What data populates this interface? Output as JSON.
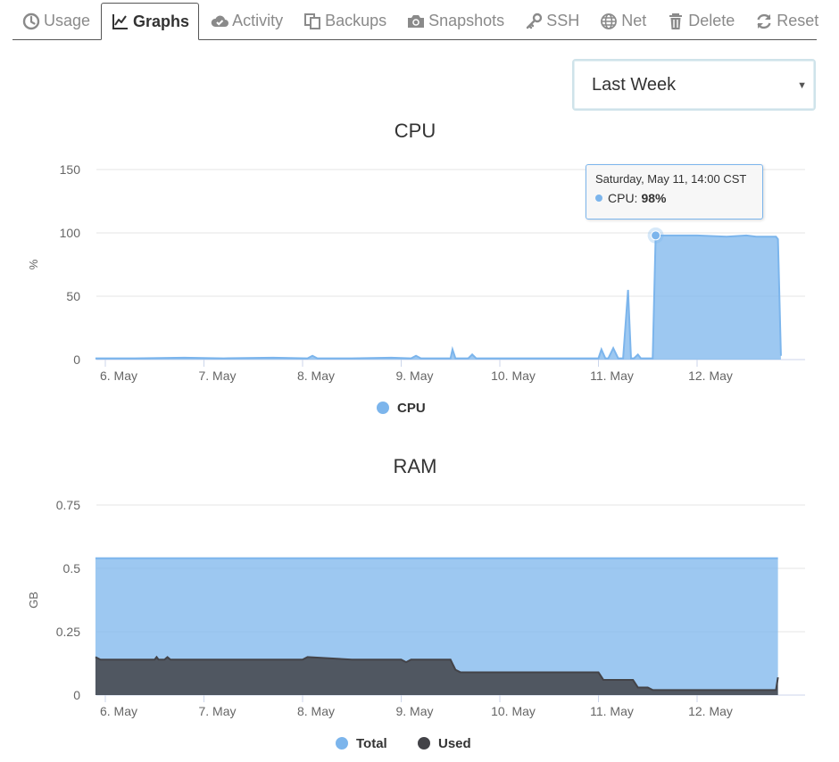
{
  "tabs": [
    {
      "label": "Usage",
      "icon": "clock-icon",
      "active": false
    },
    {
      "label": "Graphs",
      "icon": "line-chart-icon",
      "active": true
    },
    {
      "label": "Activity",
      "icon": "cloud-check-icon",
      "active": false
    },
    {
      "label": "Backups",
      "icon": "copy-icon",
      "active": false
    },
    {
      "label": "Snapshots",
      "icon": "camera-icon",
      "active": false
    },
    {
      "label": "SSH",
      "icon": "key-icon",
      "active": false
    },
    {
      "label": "Net",
      "icon": "globe-icon",
      "active": false
    },
    {
      "label": "Delete",
      "icon": "trash-icon",
      "active": false
    },
    {
      "label": "Reset",
      "icon": "refresh-icon",
      "active": false
    }
  ],
  "range_select": {
    "value": "Last Week"
  },
  "tooltip": {
    "date": "Saturday, May 11, 14:00 CST",
    "series": "CPU:",
    "value": "98%"
  },
  "colors": {
    "cpu": "#7cb5ec",
    "total": "#7cb5ec",
    "used": "#434348"
  },
  "chart_data": [
    {
      "type": "area",
      "title": "CPU",
      "ylabel": "%",
      "xlabel": "",
      "ylim": [
        0,
        150
      ],
      "yticks": [
        "0",
        "50",
        "100",
        "150"
      ],
      "yticks_values": [
        0,
        50,
        100,
        150
      ],
      "xticks": [
        "6. May",
        "7. May",
        "8. May",
        "9. May",
        "10. May",
        "11. May",
        "12. May"
      ],
      "xlim": [
        -0.1,
        6.85
      ],
      "legend": "bottom",
      "grid": true,
      "series": [
        {
          "name": "CPU",
          "color": "#7cb5ec",
          "x": [
            -0.1,
            0.3,
            0.8,
            1.2,
            1.7,
            2.05,
            2.1,
            2.15,
            2.5,
            2.9,
            3.1,
            3.15,
            3.2,
            3.5,
            3.52,
            3.55,
            3.6,
            3.68,
            3.72,
            3.76,
            4.0,
            4.5,
            4.9,
            4.95,
            5.0,
            5.03,
            5.07,
            5.1,
            5.15,
            5.2,
            5.25,
            5.3,
            5.33,
            5.36,
            5.4,
            5.43,
            5.46,
            5.5,
            5.55,
            5.58,
            5.65,
            5.8,
            6.0,
            6.3,
            6.5,
            6.6,
            6.8,
            6.82,
            6.85
          ],
          "values": [
            1,
            1,
            1.5,
            1,
            1.5,
            1,
            3,
            1,
            1,
            1.5,
            1,
            3,
            1,
            1,
            8,
            1,
            1,
            1,
            4,
            1,
            1,
            1,
            1,
            1,
            1,
            8,
            1,
            1,
            9,
            1,
            1,
            55,
            1,
            1,
            4,
            1,
            1,
            1,
            1,
            98,
            98,
            98,
            98,
            97,
            98,
            97,
            97,
            95,
            3
          ]
        }
      ],
      "highlight": {
        "x": 5.58,
        "value": 98
      }
    },
    {
      "type": "area",
      "title": "RAM",
      "ylabel": "GB",
      "xlabel": "",
      "ylim": [
        0,
        0.75
      ],
      "yticks": [
        "0",
        "0.25",
        "0.5",
        "0.75"
      ],
      "yticks_values": [
        0,
        0.25,
        0.5,
        0.75
      ],
      "xticks": [
        "6. May",
        "7. May",
        "8. May",
        "9. May",
        "10. May",
        "11. May",
        "12. May"
      ],
      "xlim": [
        -0.1,
        6.85
      ],
      "legend": "bottom",
      "grid": true,
      "series": [
        {
          "name": "Total",
          "color": "#7cb5ec",
          "x": [
            -0.1,
            6.82
          ],
          "values": [
            0.54,
            0.54
          ]
        },
        {
          "name": "Used",
          "color": "#434348",
          "x": [
            -0.1,
            -0.05,
            0.5,
            0.52,
            0.54,
            0.6,
            0.63,
            0.66,
            1.5,
            2.0,
            2.05,
            2.5,
            3.0,
            3.05,
            3.1,
            3.2,
            3.5,
            3.55,
            3.6,
            3.65,
            4.0,
            4.2,
            4.5,
            5.0,
            5.05,
            5.35,
            5.4,
            5.5,
            5.55,
            6.0,
            6.5,
            6.8,
            6.82
          ],
          "values": [
            0.15,
            0.14,
            0.14,
            0.15,
            0.14,
            0.14,
            0.15,
            0.14,
            0.14,
            0.14,
            0.15,
            0.14,
            0.14,
            0.13,
            0.14,
            0.14,
            0.14,
            0.1,
            0.09,
            0.09,
            0.09,
            0.09,
            0.09,
            0.09,
            0.06,
            0.06,
            0.03,
            0.03,
            0.02,
            0.02,
            0.02,
            0.02,
            0.07
          ]
        }
      ]
    }
  ]
}
